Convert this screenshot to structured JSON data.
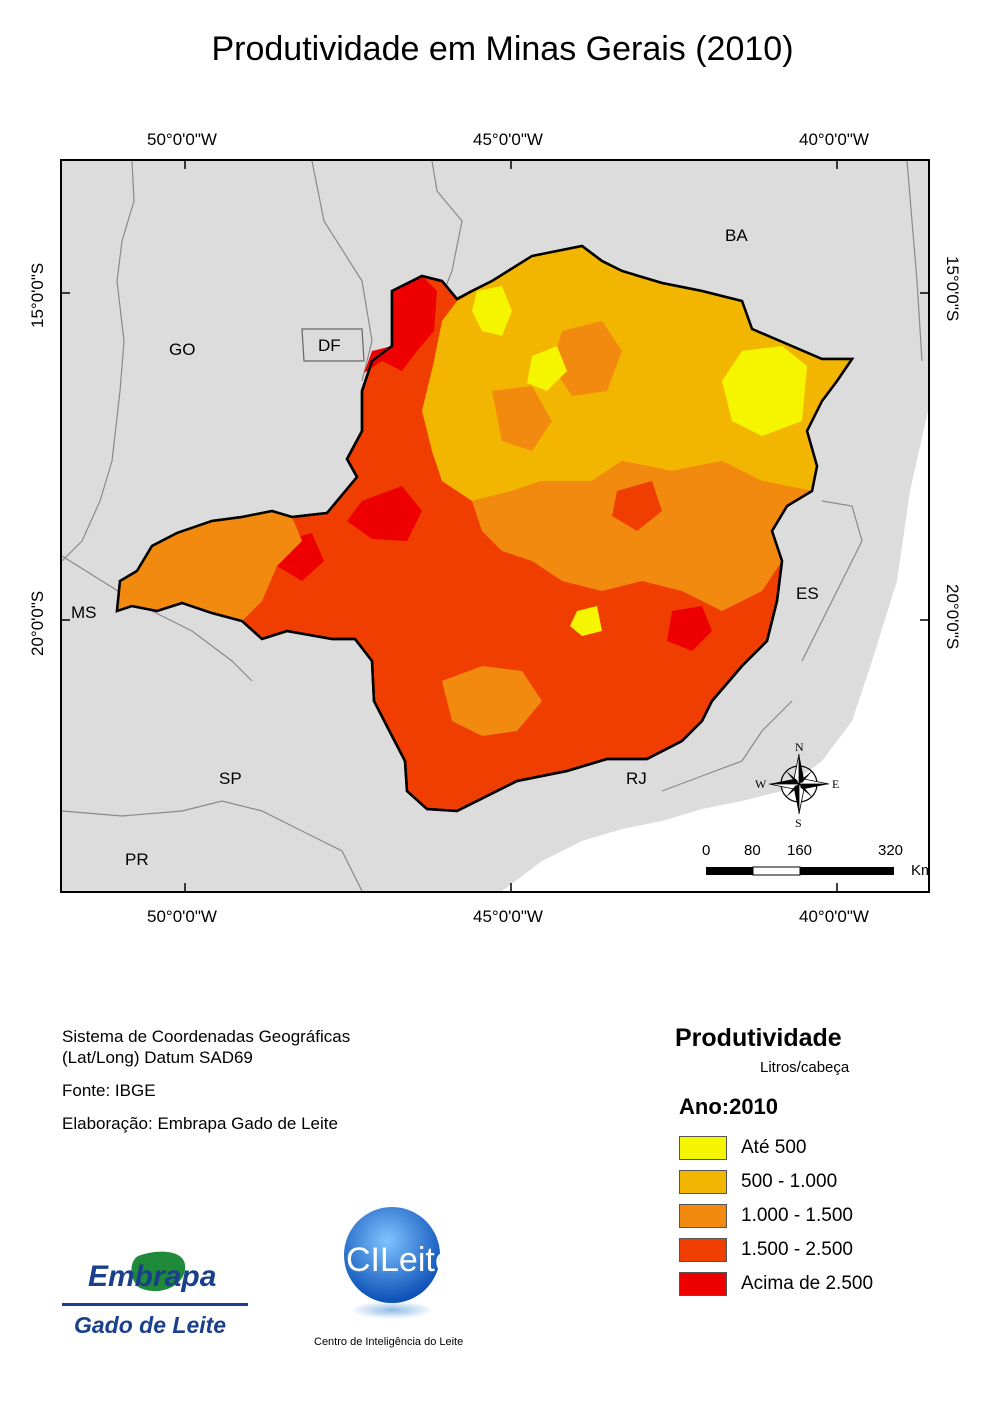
{
  "title": "Produtividade em Minas Gerais (2010)",
  "graticule": {
    "lon": [
      "50°0'0\"W",
      "45°0'0\"W",
      "40°0'0\"W"
    ],
    "lat": [
      "15°0'0\"S",
      "20°0'0\"S"
    ]
  },
  "states": {
    "ba": "BA",
    "go": "GO",
    "df": "DF",
    "ms": "MS",
    "es": "ES",
    "sp": "SP",
    "rj": "RJ",
    "pr": "PR"
  },
  "compass": {
    "n": "N",
    "s": "S",
    "e": "E",
    "w": "W"
  },
  "scalebar": {
    "ticks": [
      "0",
      "80",
      "160",
      "320"
    ],
    "unit": "Km"
  },
  "notes": {
    "crs_line1": "Sistema de Coordenadas Geográficas",
    "crs_line2": "(Lat/Long) Datum SAD69",
    "source": "Fonte: IBGE",
    "author": "Elaboração: Embrapa Gado de Leite"
  },
  "legend": {
    "title": "Produtividade",
    "unit": "Litros/cabeça",
    "year": "Ano:2010",
    "classes": [
      {
        "label": "Até 500",
        "color": "#f5f500"
      },
      {
        "label": "500 - 1.000",
        "color": "#f2b600"
      },
      {
        "label": "1.000 - 1.500",
        "color": "#f28a0f"
      },
      {
        "label": "1.500 - 2.500",
        "color": "#f03e00"
      },
      {
        "label": "Acima de 2.500",
        "color": "#ee0000"
      }
    ]
  },
  "logos": {
    "embrapa_text": "Embrapa",
    "embrapa_sub": "Gado de Leite",
    "cileite_text": "CILeite",
    "cileite_sub": "Centro de Inteligência do Leite"
  },
  "colors": {
    "outside": "#dcdcdc",
    "ocean": "#ffffff",
    "border": "#808080"
  }
}
